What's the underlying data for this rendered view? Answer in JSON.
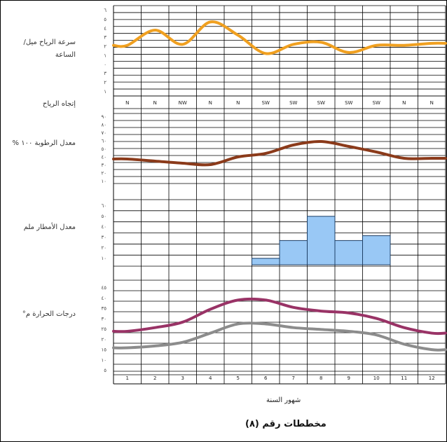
{
  "months": [
    "1",
    "2",
    "3",
    "4",
    "5",
    "6",
    "7",
    "8",
    "9",
    "10",
    "11",
    "12"
  ],
  "panels": {
    "wind_speed": {
      "label": "سرعة الرياح ميل/الساعة",
      "ticks": [
        "٦",
        "٥",
        "٤",
        "٣",
        "٢",
        "١",
        "٠",
        "٣",
        "٢",
        "١"
      ],
      "color": "#f0a020"
    },
    "wind_direction": {
      "label": "إتجاه الرياح",
      "values": [
        "N",
        "N",
        "NW",
        "N",
        "N",
        "SW",
        "SW",
        "SW",
        "SW",
        "SW",
        "N",
        "N"
      ]
    },
    "humidity": {
      "label": "معدل الرطوبة ١٠٠ %",
      "ticks": [
        "٩٠",
        "٨٠",
        "٧٠",
        "٦٠",
        "٥٠",
        "٤٠",
        "٣٠",
        "٢٠",
        "١٠"
      ],
      "color": "#8b3a1a"
    },
    "rainfall": {
      "label": "معدل الأمطار ملم",
      "ticks": [
        "٦٠",
        "٥٠",
        "٤٠",
        "٣٠",
        "٢٠",
        "١٠"
      ],
      "color": "#99c8f5"
    },
    "temperature": {
      "label": "درجات الحرارة م°",
      "ticks": [
        "٤٥",
        "٤٠",
        "٣٥",
        "٣٠",
        "٢٥",
        "٢٠",
        "١٥",
        "١٠",
        "٥"
      ],
      "max_color": "#993366",
      "min_color": "#8c8c8c"
    }
  },
  "xlabel": "شهور السنة",
  "caption": "مخططات رقم (٨)",
  "chart_data": [
    {
      "type": "line",
      "title": "",
      "ylabel": "سرعة الرياح ميل/الساعة",
      "categories": [
        "1",
        "2",
        "3",
        "4",
        "5",
        "6",
        "7",
        "8",
        "9",
        "10",
        "11",
        "12"
      ],
      "series": [
        {
          "values": [
            4.5,
            6.0,
            4.6,
            6.8,
            5.5,
            3.7,
            4.6,
            4.8,
            3.8,
            4.5,
            4.5,
            4.7
          ]
        }
      ]
    },
    {
      "type": "table",
      "title": "",
      "ylabel": "إتجاه الرياح",
      "categories": [
        "1",
        "2",
        "3",
        "4",
        "5",
        "6",
        "7",
        "8",
        "9",
        "10",
        "11",
        "12"
      ],
      "values": [
        "N",
        "N",
        "NW",
        "N",
        "N",
        "SW",
        "SW",
        "SW",
        "SW",
        "SW",
        "N",
        "N"
      ]
    },
    {
      "type": "line",
      "title": "",
      "ylabel": "معدل الرطوبة ١٠٠ %",
      "categories": [
        "1",
        "2",
        "3",
        "4",
        "5",
        "6",
        "7",
        "8",
        "9",
        "10",
        "11",
        "12"
      ],
      "series": [
        {
          "values": [
            35,
            32,
            29,
            27,
            38,
            43,
            55,
            60,
            53,
            45,
            36,
            36
          ]
        }
      ]
    },
    {
      "type": "bar",
      "title": "",
      "ylabel": "معدل الأمطار ملم",
      "categories": [
        "1",
        "2",
        "3",
        "4",
        "5",
        "6",
        "7",
        "8",
        "9",
        "10",
        "11",
        "12"
      ],
      "values": [
        0,
        0,
        0,
        0,
        0,
        4,
        15,
        30,
        15,
        18,
        0,
        0
      ]
    },
    {
      "type": "line",
      "title": "",
      "ylabel": "درجات الحرارة م°",
      "categories": [
        "1",
        "2",
        "3",
        "4",
        "5",
        "6",
        "7",
        "8",
        "9",
        "10",
        "11",
        "12"
      ],
      "series": [
        {
          "values": [
            21,
            23,
            26,
            33,
            38,
            38,
            34,
            32,
            31,
            28,
            23,
            20
          ]
        },
        {
          "values": [
            12,
            13,
            15,
            20,
            25,
            25,
            23,
            22,
            21,
            19,
            14,
            11
          ]
        }
      ]
    }
  ]
}
